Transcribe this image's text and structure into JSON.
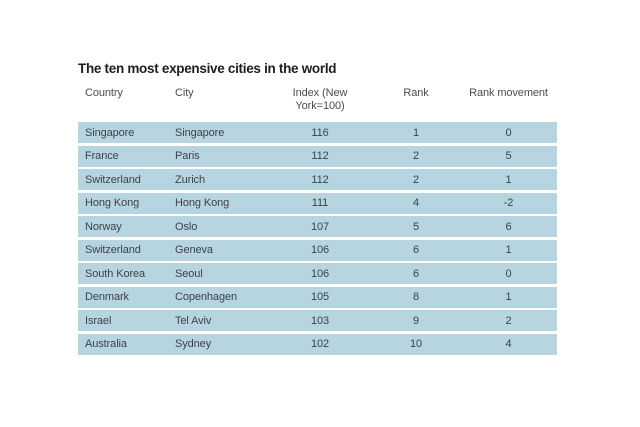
{
  "colors": {
    "row_background": "#b6d5e1",
    "cell_text": "#3d4246",
    "header_text": "#4a4d4f",
    "title_text": "#1d1d1b",
    "page_background": "#ffffff"
  },
  "chart_data": {
    "type": "table",
    "title": "The ten most expensive cities in the world",
    "columns": [
      "Country",
      "City",
      "Index (New York=100)",
      "Rank",
      "Rank movement"
    ],
    "rows": [
      [
        "Singapore",
        "Singapore",
        "116",
        "1",
        "0"
      ],
      [
        "France",
        "Paris",
        "112",
        "2",
        "5"
      ],
      [
        "Switzerland",
        "Zurich",
        "112",
        "2",
        "1"
      ],
      [
        "Hong Kong",
        "Hong Kong",
        "111",
        "4",
        "-2"
      ],
      [
        "Norway",
        "Oslo",
        "107",
        "5",
        "6"
      ],
      [
        "Switzerland",
        "Geneva",
        "106",
        "6",
        "1"
      ],
      [
        "South Korea",
        "Seoul",
        "106",
        "6",
        "0"
      ],
      [
        "Denmark",
        "Copenhagen",
        "105",
        "8",
        "1"
      ],
      [
        "Israel",
        "Tel Aviv",
        "103",
        "9",
        "2"
      ],
      [
        "Australia",
        "Sydney",
        "102",
        "10",
        "4"
      ]
    ],
    "layout": {
      "grid": "off",
      "row_striping": "solid light-blue bars separated by white gaps",
      "alignment": [
        "left",
        "left",
        "center",
        "center",
        "center"
      ]
    }
  }
}
